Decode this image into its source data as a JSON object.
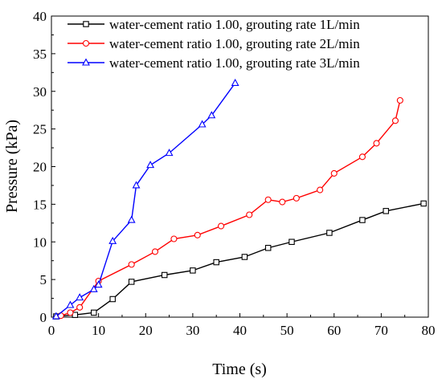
{
  "chart_data": {
    "type": "line",
    "title": "",
    "xlabel": "Time (s)",
    "ylabel": "Pressure (kPa)",
    "xlim": [
      0,
      80
    ],
    "ylim": [
      0,
      40
    ],
    "xticks": [
      0,
      10,
      20,
      30,
      40,
      50,
      60,
      70,
      80
    ],
    "yticks": [
      0,
      5,
      10,
      15,
      20,
      25,
      30,
      35,
      40
    ],
    "grid": false,
    "legend_position": "top-left",
    "series": [
      {
        "name": "water-cement ratio 1.00, grouting rate 1L/min",
        "color": "#000000",
        "marker": "square",
        "x": [
          1,
          5,
          9,
          13,
          17,
          24,
          30,
          35,
          41,
          46,
          51,
          59,
          66,
          71,
          79
        ],
        "y": [
          0.1,
          0.3,
          0.6,
          2.4,
          4.7,
          5.6,
          6.2,
          7.3,
          8.0,
          9.2,
          10.0,
          11.2,
          12.9,
          14.1,
          15.1
        ]
      },
      {
        "name": "water-cement ratio 1.00, grouting rate 2L/min",
        "color": "#ff0000",
        "marker": "circle",
        "x": [
          2,
          4,
          6,
          10,
          17,
          22,
          26,
          31,
          36,
          42,
          46,
          49,
          52,
          57,
          60,
          66,
          69,
          73,
          74
        ],
        "y": [
          0.2,
          0.6,
          1.3,
          4.8,
          7.0,
          8.7,
          10.4,
          10.9,
          12.1,
          13.6,
          15.6,
          15.3,
          15.8,
          16.9,
          19.1,
          21.3,
          23.1,
          26.1,
          28.8
        ]
      },
      {
        "name": "water-cement ratio 1.00, grouting rate 3L/min",
        "color": "#0000ff",
        "marker": "triangle",
        "x": [
          1,
          4,
          6,
          9,
          10,
          13,
          17,
          18,
          21,
          25,
          32,
          34,
          39
        ],
        "y": [
          0.1,
          1.6,
          2.6,
          3.7,
          4.3,
          10.1,
          12.9,
          17.5,
          20.2,
          21.8,
          25.6,
          26.8,
          31.1
        ]
      }
    ]
  }
}
